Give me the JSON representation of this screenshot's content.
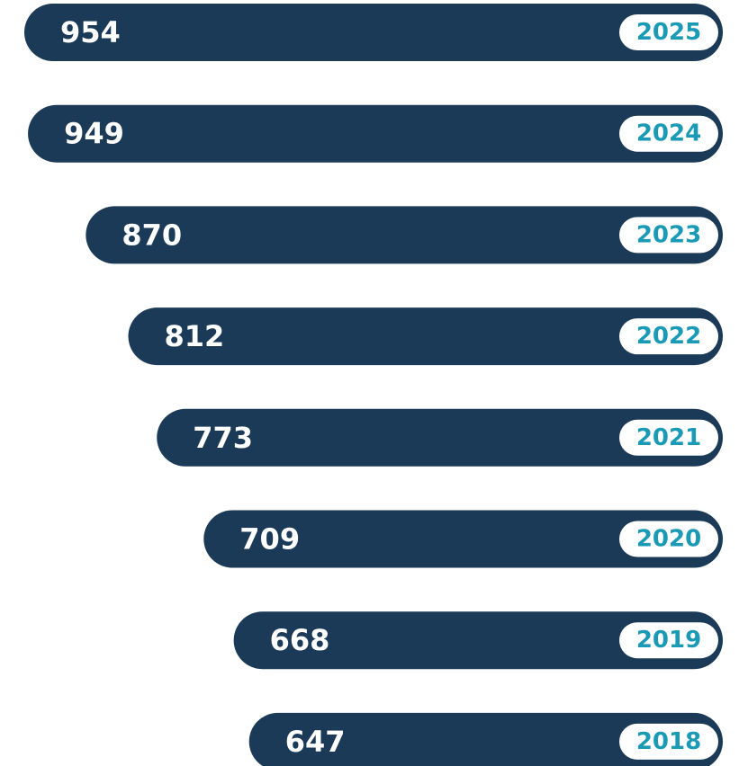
{
  "chart_data": {
    "type": "bar",
    "orientation": "horizontal",
    "categories": [
      "2025",
      "2024",
      "2023",
      "2022",
      "2021",
      "2020",
      "2019",
      "2018"
    ],
    "values": [
      954,
      949,
      870,
      812,
      773,
      709,
      668,
      647
    ],
    "color": "#1b3a57",
    "label_color": "#1a9ab5"
  }
}
